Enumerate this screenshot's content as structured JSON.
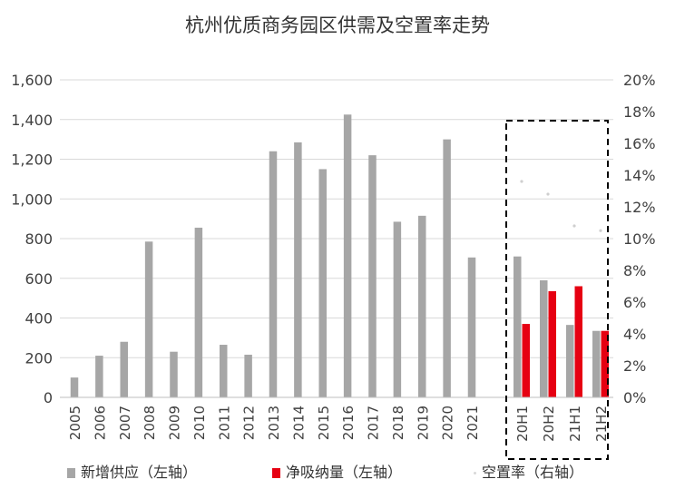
{
  "chart_data": {
    "type": "bar",
    "title": "杭州优质商务园区供需及空置率走势",
    "categories": [
      "2005",
      "2006",
      "2007",
      "2008",
      "2009",
      "2010",
      "2011",
      "2012",
      "2013",
      "2014",
      "2015",
      "2016",
      "2017",
      "2018",
      "2019",
      "2020",
      "2021",
      "20H1",
      "20H2",
      "21H1",
      "21H2"
    ],
    "series": [
      {
        "name": "新增供应（左轴）",
        "axis": "left",
        "color": "#a6a6a6",
        "values": [
          100,
          210,
          280,
          785,
          230,
          855,
          265,
          215,
          1240,
          1285,
          1150,
          1425,
          1220,
          885,
          915,
          1300,
          705,
          710,
          590,
          365,
          335
        ]
      },
      {
        "name": "净吸纳量（左轴）",
        "axis": "left",
        "color": "#e60012",
        "values": [
          null,
          null,
          null,
          null,
          null,
          null,
          null,
          null,
          null,
          null,
          null,
          null,
          null,
          null,
          null,
          null,
          null,
          370,
          535,
          560,
          335
        ]
      },
      {
        "name": "空置率（右轴）",
        "axis": "right",
        "type": "scatter",
        "color": "#d9d9d9",
        "values": [
          null,
          null,
          null,
          null,
          null,
          null,
          null,
          null,
          null,
          null,
          null,
          null,
          null,
          null,
          null,
          null,
          null,
          0.136,
          0.128,
          0.108,
          0.105
        ]
      }
    ],
    "y_left": {
      "ylim": [
        0,
        1600
      ],
      "ticks": [
        "0",
        "200",
        "400",
        "600",
        "800",
        "1,000",
        "1,200",
        "1,400",
        "1,600"
      ]
    },
    "y_right": {
      "ylim": [
        0,
        0.2
      ],
      "ticks": [
        "0%",
        "2%",
        "4%",
        "6%",
        "8%",
        "10%",
        "12%",
        "14%",
        "16%",
        "18%",
        "20%"
      ]
    },
    "grid": true,
    "legend_position": "bottom",
    "highlight_box_categories": [
      "20H1",
      "20H2",
      "21H1",
      "21H2"
    ]
  }
}
